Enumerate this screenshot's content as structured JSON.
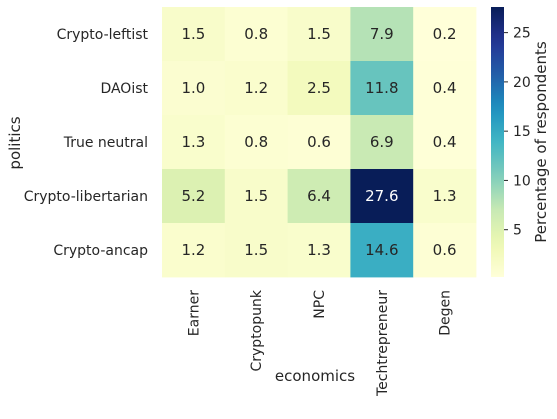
{
  "chart_data": {
    "type": "heatmap",
    "title": "",
    "xlabel": "economics",
    "ylabel": "politics",
    "x_categories": [
      "Earner",
      "Cryptopunk",
      "NPC",
      "Techtrepreneur",
      "Degen"
    ],
    "y_categories": [
      "Crypto-leftist",
      "DAOist",
      "True neutral",
      "Crypto-libertarian",
      "Crypto-ancap"
    ],
    "values": [
      [
        1.5,
        0.8,
        1.5,
        7.9,
        0.2
      ],
      [
        1.0,
        1.2,
        2.5,
        11.8,
        0.4
      ],
      [
        1.3,
        0.8,
        0.6,
        6.9,
        0.4
      ],
      [
        5.2,
        1.5,
        6.4,
        27.6,
        1.3
      ],
      [
        1.2,
        1.5,
        1.3,
        14.6,
        0.6
      ]
    ],
    "value_labels": [
      [
        "1.5",
        "0.8",
        "1.5",
        "7.9",
        "0.2"
      ],
      [
        "1.0",
        "1.2",
        "2.5",
        "11.8",
        "0.4"
      ],
      [
        "1.3",
        "0.8",
        "0.6",
        "6.9",
        "0.4"
      ],
      [
        "5.2",
        "1.5",
        "6.4",
        "27.6",
        "1.3"
      ],
      [
        "1.2",
        "1.5",
        "1.3",
        "14.6",
        "0.6"
      ]
    ],
    "colormap": "YlGnBu",
    "colorbar": {
      "label": "Percentage of respondents",
      "vmin": 0.2,
      "vmax": 27.6,
      "ticks": [
        5,
        10,
        15,
        20,
        25
      ],
      "tick_labels": [
        "5",
        "10",
        "15",
        "20",
        "25"
      ]
    }
  }
}
